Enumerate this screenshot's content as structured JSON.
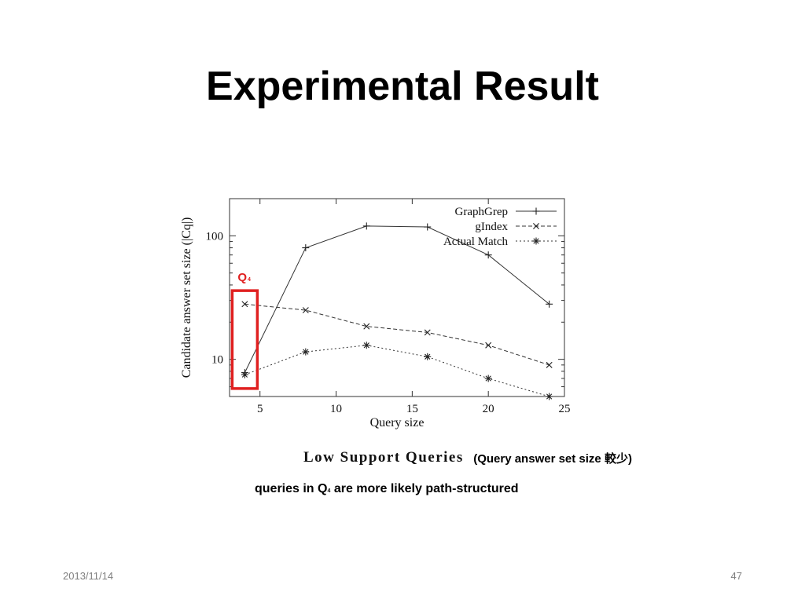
{
  "slide": {
    "title": "Experimental Result",
    "caption": "Low Support Queries",
    "caption_note": "(Query answer set size 較少)",
    "note_prefix": "queries in Q",
    "note_sub": "4",
    "note_suffix": " are more likely path-structured",
    "footer_date": "2013/11/14",
    "page_number": "47"
  },
  "highlight": {
    "label": "Q",
    "sub": "4",
    "x": 4,
    "color": "#e02020"
  },
  "chart_data": {
    "type": "line",
    "xlabel": "Query size",
    "ylabel": "Candidate answer set size (|Cq|)",
    "x_scale": "linear",
    "y_scale": "log",
    "xlim": [
      3,
      25
    ],
    "ylim": [
      5,
      200
    ],
    "xticks": [
      5,
      10,
      15,
      20,
      25
    ],
    "yticks": [
      10,
      100
    ],
    "grid": false,
    "legend_position": "top-right",
    "x": [
      4,
      8,
      12,
      16,
      20,
      24
    ],
    "series": [
      {
        "name": "GraphGrep",
        "style": "solid",
        "marker": "+",
        "values": [
          7.8,
          80,
          120,
          118,
          70,
          28
        ]
      },
      {
        "name": "gIndex",
        "style": "dashed",
        "marker": "x",
        "values": [
          28,
          25,
          18.5,
          16.5,
          13,
          9
        ]
      },
      {
        "name": "Actual Match",
        "style": "dotted",
        "marker": "*",
        "values": [
          7.5,
          11.5,
          13,
          10.5,
          7,
          5
        ]
      }
    ]
  }
}
